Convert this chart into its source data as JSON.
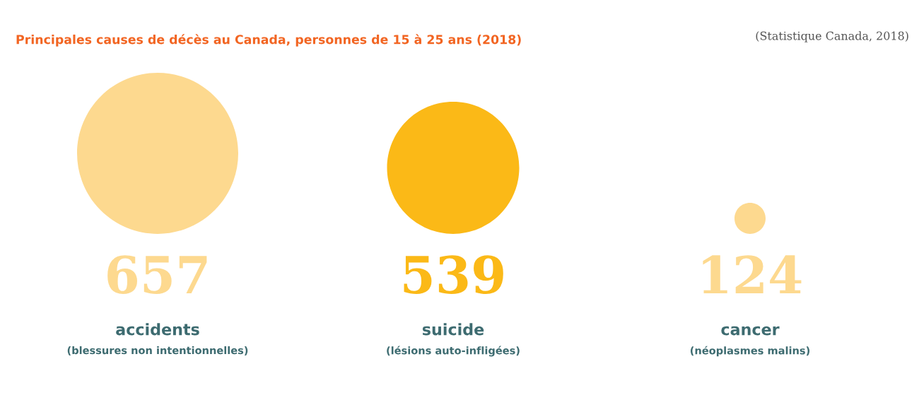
{
  "chart_data": {
    "type": "other",
    "title": "Principales causes de décès au Canada, personnes de 15 à 25 ans (2018)",
    "categories": [
      "accidents",
      "suicide",
      "cancer"
    ],
    "values": [
      657,
      539,
      124
    ],
    "colors": [
      "#fdd98f",
      "#fbb917",
      "#fdd98f"
    ],
    "data_labels": true,
    "annotations": [
      "(blessures non intentionnelles)",
      "(lésions auto-infligées)",
      "(néoplasmes malins)",
      "(Statistique Canada, 2018)"
    ]
  }
}
